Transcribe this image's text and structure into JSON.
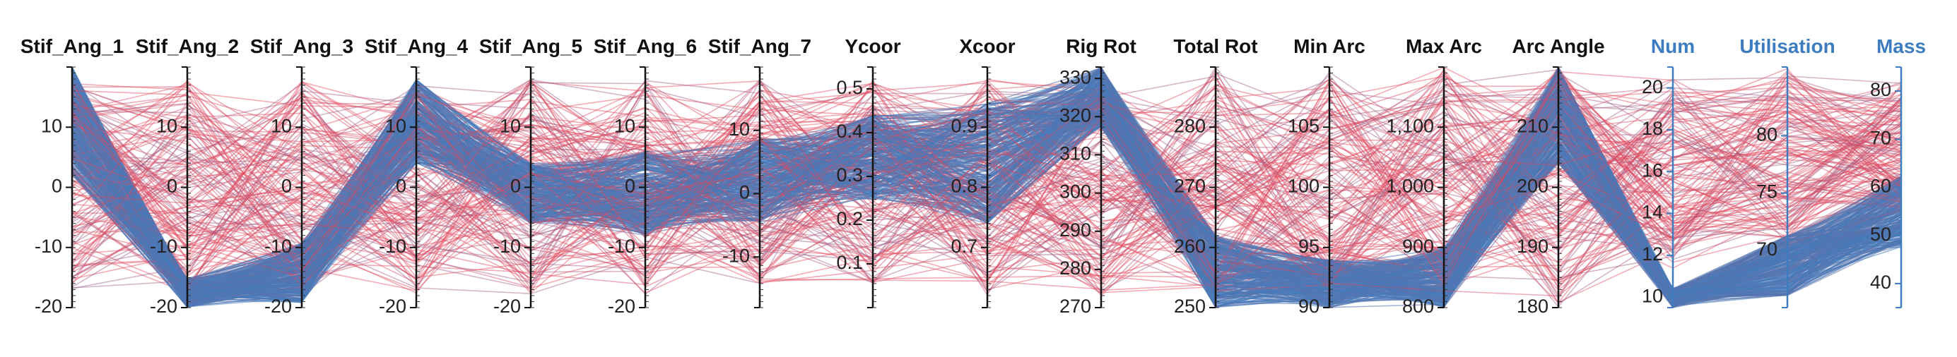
{
  "chart_data": {
    "type": "parallel_coordinates",
    "colors": {
      "low": "#e8475a",
      "high": "#3d7dbf",
      "performance_title": "#3d7dbf"
    },
    "axes": [
      {
        "name": "Stif_Ang_1",
        "range": [
          -20,
          20
        ],
        "ticks": [
          "-20",
          "-10",
          "0",
          "10"
        ],
        "tick_values": [
          -20,
          -10,
          0,
          10
        ],
        "group": "design"
      },
      {
        "name": "Stif_Ang_2",
        "range": [
          -20,
          20
        ],
        "ticks": [
          "-20",
          "-10",
          "0",
          "10"
        ],
        "tick_values": [
          -20,
          -10,
          0,
          10
        ],
        "group": "design"
      },
      {
        "name": "Stif_Ang_3",
        "range": [
          -20,
          20
        ],
        "ticks": [
          "-20",
          "-10",
          "0",
          "10"
        ],
        "tick_values": [
          -20,
          -10,
          0,
          10
        ],
        "group": "design"
      },
      {
        "name": "Stif_Ang_4",
        "range": [
          -20,
          20
        ],
        "ticks": [
          "-20",
          "-10",
          "0",
          "10"
        ],
        "tick_values": [
          -20,
          -10,
          0,
          10
        ],
        "group": "design"
      },
      {
        "name": "Stif_Ang_5",
        "range": [
          -20,
          20
        ],
        "ticks": [
          "-20",
          "-10",
          "0",
          "10"
        ],
        "tick_values": [
          -20,
          -10,
          0,
          10
        ],
        "group": "design"
      },
      {
        "name": "Stif_Ang_6",
        "range": [
          -20,
          20
        ],
        "ticks": [
          "-20",
          "-10",
          "0",
          "10"
        ],
        "tick_values": [
          -20,
          -10,
          0,
          10
        ],
        "group": "design"
      },
      {
        "name": "Stif_Ang_7",
        "range": [
          -18,
          20
        ],
        "ticks": [
          "-10",
          "0",
          "10"
        ],
        "tick_values": [
          -10,
          0,
          10
        ],
        "group": "design"
      },
      {
        "name": "Ycoor",
        "range": [
          0.0,
          0.55
        ],
        "ticks": [
          "0.1",
          "0.2",
          "0.3",
          "0.4",
          "0.5"
        ],
        "tick_values": [
          0.1,
          0.2,
          0.3,
          0.4,
          0.5
        ],
        "group": "design"
      },
      {
        "name": "Xcoor",
        "range": [
          0.6,
          1.0
        ],
        "ticks": [
          "0.7",
          "0.8",
          "0.9"
        ],
        "tick_values": [
          0.7,
          0.8,
          0.9
        ],
        "group": "design"
      },
      {
        "name": "Rig Rot",
        "range": [
          270,
          333
        ],
        "ticks": [
          "270",
          "280",
          "290",
          "300",
          "310",
          "320",
          "330"
        ],
        "tick_values": [
          270,
          280,
          290,
          300,
          310,
          320,
          330
        ],
        "group": "design"
      },
      {
        "name": "Total Rot",
        "range": [
          250,
          290
        ],
        "ticks": [
          "250",
          "260",
          "270",
          "280"
        ],
        "tick_values": [
          250,
          260,
          270,
          280
        ],
        "group": "design"
      },
      {
        "name": "Min Arc",
        "range": [
          90,
          110
        ],
        "ticks": [
          "90",
          "95",
          "100",
          "105"
        ],
        "tick_values": [
          90,
          95,
          100,
          105
        ],
        "group": "design"
      },
      {
        "name": "Max Arc",
        "range": [
          800,
          1200
        ],
        "ticks": [
          "800",
          "900",
          "1,000",
          "1,100"
        ],
        "tick_values": [
          800,
          900,
          1000,
          1100
        ],
        "group": "design"
      },
      {
        "name": "Arc Angle",
        "range": [
          180,
          220
        ],
        "ticks": [
          "180",
          "190",
          "200",
          "210"
        ],
        "tick_values": [
          180,
          190,
          200,
          210
        ],
        "group": "design"
      },
      {
        "name": "Num",
        "range": [
          9.5,
          21
        ],
        "ticks": [
          "10",
          "12",
          "14",
          "16",
          "18",
          "20"
        ],
        "tick_values": [
          10,
          12,
          14,
          16,
          18,
          20
        ],
        "group": "performance"
      },
      {
        "name": "Utilisation",
        "range": [
          65,
          86
        ],
        "ticks": [
          "70",
          "75",
          "80"
        ],
        "tick_values": [
          70,
          75,
          80
        ],
        "group": "performance"
      },
      {
        "name": "Mass",
        "range": [
          35,
          85
        ],
        "ticks": [
          "40",
          "50",
          "60",
          "70",
          "80"
        ],
        "tick_values": [
          40,
          50,
          60,
          70,
          80
        ],
        "group": "performance"
      }
    ],
    "color_by": "Num",
    "line_count": 420,
    "grid": false,
    "legend": "none"
  }
}
